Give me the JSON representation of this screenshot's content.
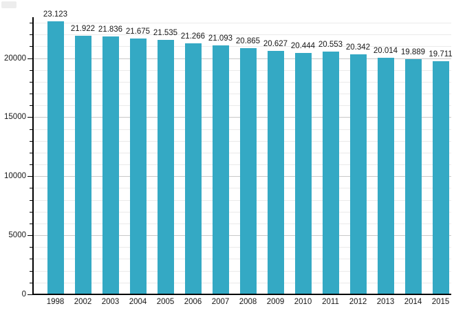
{
  "chart_data": {
    "type": "bar",
    "title": "",
    "categories": [
      "1998",
      "2002",
      "2003",
      "2004",
      "2005",
      "2006",
      "2007",
      "2008",
      "2009",
      "2010",
      "2011",
      "2012",
      "2013",
      "2014",
      "2015"
    ],
    "values": [
      23123,
      21922,
      21836,
      21675,
      21535,
      21266,
      21093,
      20865,
      20627,
      20444,
      20553,
      20342,
      20014,
      19889,
      19711
    ],
    "value_labels": [
      "23.123",
      "21.922",
      "21.836",
      "21.675",
      "21.535",
      "21.266",
      "21.093",
      "20.865",
      "20.627",
      "20.444",
      "20.553",
      "20.342",
      "20.014",
      "19.889",
      "19.711"
    ],
    "xlabel": "",
    "ylabel": "",
    "y_tick_labels": [
      "0",
      "5000",
      "10000",
      "15000",
      "20000"
    ],
    "y_ticks": [
      0,
      5000,
      10000,
      15000,
      20000
    ],
    "y_major_step": 5000,
    "y_minor_step": 1000,
    "ylim": [
      0,
      23350
    ],
    "grid": true,
    "legend_position": "none",
    "colors": {
      "bar": "#34a9c4",
      "grid_minor": "#eaeaea",
      "grid_major": "#c8c8c8",
      "axis": "#000000",
      "text": "#161616"
    }
  }
}
